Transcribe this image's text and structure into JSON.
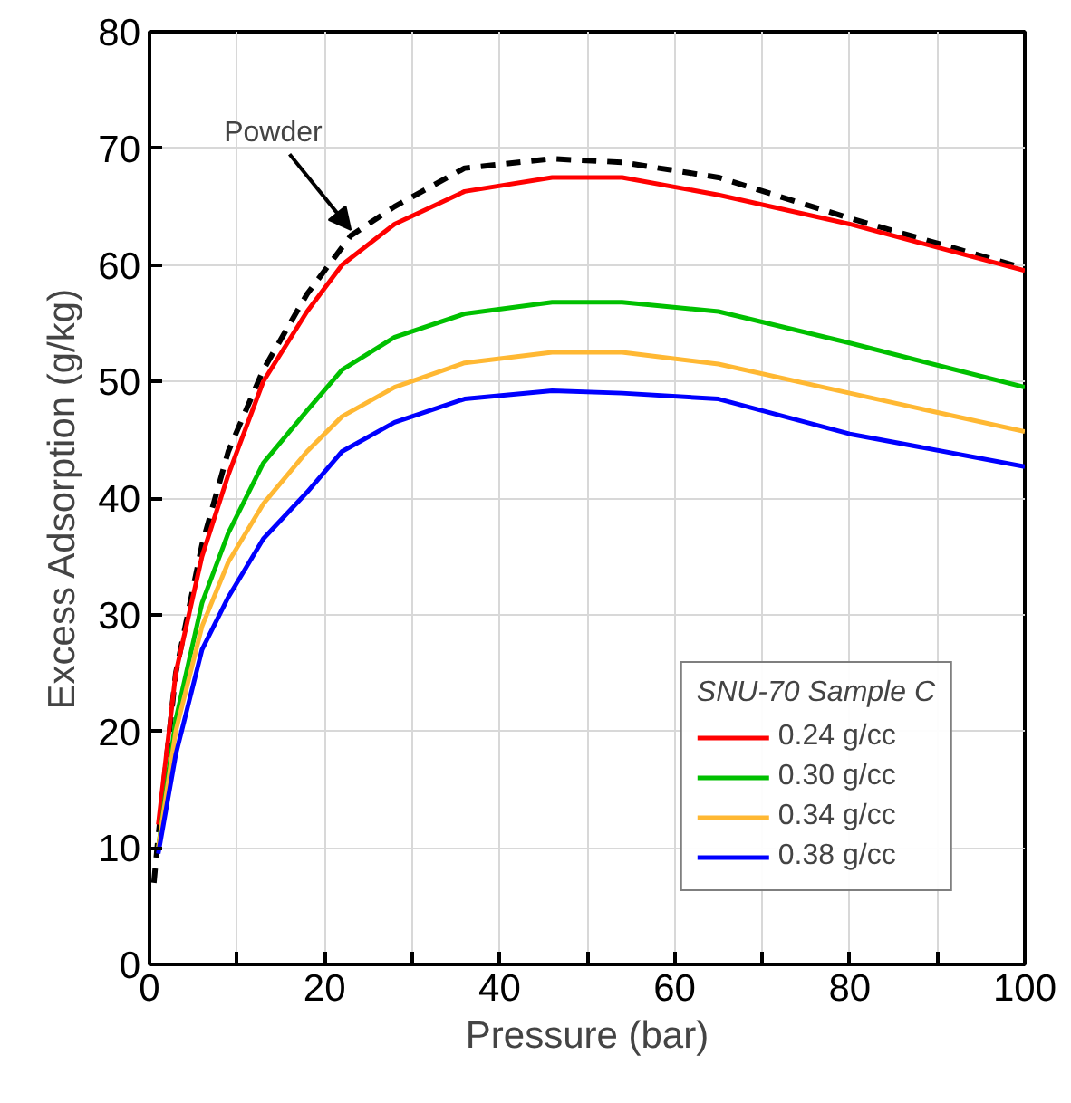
{
  "chart_data": {
    "type": "line",
    "xlabel": "Pressure (bar)",
    "ylabel": "Excess Adsorption (g/kg)",
    "legend_title": "SNU-70 Sample C",
    "xlim": [
      0,
      100
    ],
    "ylim": [
      0,
      80
    ],
    "xticks": [
      0,
      {
        "value": 10,
        "label": null
      },
      20,
      {
        "value": 30,
        "label": null
      },
      40,
      {
        "value": 50,
        "label": null
      },
      60,
      {
        "value": 70,
        "label": null
      },
      80,
      {
        "value": 90,
        "label": null
      },
      100
    ],
    "yticks": [
      0,
      10,
      20,
      30,
      40,
      50,
      60,
      70,
      80
    ],
    "grid": true,
    "legend": "bottom right",
    "line_style": "solid",
    "annotations": [
      {
        "text": "Powder",
        "x": 23,
        "y": 63
      }
    ],
    "series": [
      {
        "color": "#000000",
        "line_style": "dashed",
        "x": [
          0.5,
          1,
          3,
          6,
          9,
          13,
          18,
          23,
          28,
          36,
          46,
          54,
          65,
          80,
          100
        ],
        "values": [
          7,
          11,
          25,
          36,
          44,
          51,
          57.5,
          62.5,
          65,
          68.3,
          69.1,
          68.8,
          67.5,
          64,
          59.7
        ]
      },
      {
        "name": "0.24 g/cc",
        "color": "#ff0000",
        "x": [
          1,
          3,
          6,
          9,
          13,
          18,
          22,
          28,
          36,
          46,
          54,
          65,
          80,
          100
        ],
        "values": [
          12,
          25,
          35,
          42,
          50,
          56,
          60,
          63.5,
          66.3,
          67.5,
          67.5,
          66,
          63.5,
          59.5
        ]
      },
      {
        "name": "0.30 g/cc",
        "color": "#00c000",
        "x": [
          1,
          3,
          6,
          9,
          13,
          18,
          22,
          28,
          36,
          46,
          54,
          65,
          80,
          100
        ],
        "values": [
          10,
          21,
          31,
          37,
          43,
          47.5,
          51,
          53.8,
          55.8,
          56.8,
          56.8,
          56,
          53.3,
          49.5
        ]
      },
      {
        "name": "0.34 g/cc",
        "color": "#ffb833",
        "x": [
          1,
          3,
          6,
          9,
          13,
          18,
          22,
          28,
          36,
          46,
          54,
          65,
          80,
          100
        ],
        "values": [
          10,
          20,
          29,
          34.5,
          39.5,
          44,
          47,
          49.5,
          51.6,
          52.5,
          52.5,
          51.5,
          49,
          45.7
        ]
      },
      {
        "name": "0.38 g/cc",
        "color": "#0000ff",
        "x": [
          1,
          3,
          6,
          9,
          13,
          18,
          22,
          28,
          36,
          46,
          54,
          65,
          80,
          100
        ],
        "values": [
          9.5,
          18,
          27,
          31.5,
          36.5,
          40.5,
          44,
          46.5,
          48.5,
          49.2,
          49,
          48.5,
          45.5,
          42.7
        ]
      }
    ]
  }
}
